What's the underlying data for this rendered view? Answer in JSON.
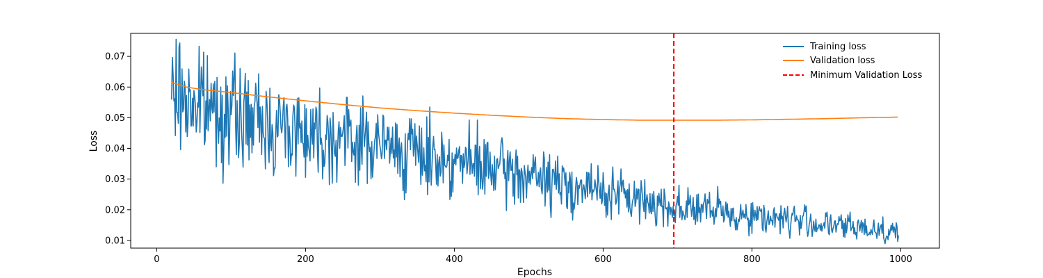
{
  "chart_data": {
    "type": "line",
    "xlabel": "Epochs",
    "ylabel": "Loss",
    "xlim": [
      -35,
      1052
    ],
    "ylim": [
      0.0075,
      0.0775
    ],
    "xticks": [
      0,
      200,
      400,
      600,
      800,
      1000
    ],
    "yticks": [
      0.01,
      0.02,
      0.03,
      0.04,
      0.05,
      0.06,
      0.07
    ],
    "ytick_labels": [
      "0.01",
      "0.02",
      "0.03",
      "0.04",
      "0.05",
      "0.06",
      "0.07"
    ],
    "grid": false,
    "legend_position": "top-right",
    "series": [
      {
        "name": "Training loss",
        "color": "#1f77b4",
        "x": [
          20,
          30,
          40,
          60,
          80,
          100,
          130,
          160,
          200,
          240,
          280,
          320,
          360,
          400,
          450,
          500,
          550,
          600,
          650,
          695,
          720,
          760,
          800,
          850,
          900,
          950,
          997
        ],
        "y": [
          0.057,
          0.058,
          0.056,
          0.054,
          0.053,
          0.051,
          0.049,
          0.047,
          0.046,
          0.044,
          0.042,
          0.04,
          0.038,
          0.036,
          0.033,
          0.031,
          0.028,
          0.026,
          0.023,
          0.021,
          0.021,
          0.019,
          0.018,
          0.017,
          0.015,
          0.014,
          0.013
        ],
        "noise_scale": 0.16,
        "noise_seed": 7
      },
      {
        "name": "Validation loss",
        "color": "#ff7f0e",
        "x": [
          20,
          40,
          60,
          100,
          150,
          200,
          250,
          300,
          350,
          400,
          450,
          500,
          550,
          600,
          650,
          695,
          750,
          800,
          850,
          900,
          950,
          997
        ],
        "y": [
          0.0615,
          0.06,
          0.0592,
          0.0582,
          0.0568,
          0.0555,
          0.0543,
          0.0532,
          0.0523,
          0.0515,
          0.0508,
          0.0502,
          0.0497,
          0.0494,
          0.0492,
          0.0492,
          0.0492,
          0.0493,
          0.0495,
          0.0497,
          0.05,
          0.0502
        ]
      }
    ],
    "vline": {
      "name": "Minimum Validation Loss",
      "x": 695,
      "color": "#ff0000",
      "style": "dashed"
    }
  }
}
